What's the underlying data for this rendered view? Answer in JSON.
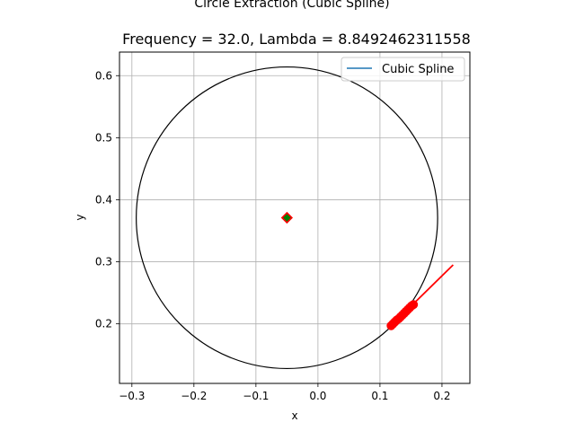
{
  "figure": {
    "suptitle": "Circle Extraction (Cubic Spline)",
    "title": "Frequency = 32.0, Lambda = 8.8492462311558"
  },
  "chart_data": {
    "type": "scatter",
    "title": "Frequency = 32.0, Lambda = 8.8492462311558",
    "xlabel": "x",
    "ylabel": "y",
    "xlim": [
      -0.32,
      0.245
    ],
    "ylim": [
      0.104,
      0.638
    ],
    "xticks": [
      -0.3,
      -0.2,
      -0.1,
      0.0,
      0.1,
      0.2
    ],
    "xtick_labels": [
      "−0.3",
      "−0.2",
      "−0.1",
      "0.0",
      "0.1",
      "0.2"
    ],
    "yticks": [
      0.2,
      0.3,
      0.4,
      0.5,
      0.6
    ],
    "ytick_labels": [
      "0.2",
      "0.3",
      "0.4",
      "0.5",
      "0.6"
    ],
    "grid": true,
    "legend": {
      "placement": "top-right",
      "entries": [
        {
          "label": "Cubic Spline",
          "color": "#1f77b4"
        }
      ]
    },
    "circle": {
      "cx": -0.05,
      "cy": 0.371,
      "r": 0.243,
      "color": "#000000"
    },
    "center_marker": {
      "x": -0.05,
      "y": 0.371,
      "fill": "#008000",
      "edge": "#ff0000"
    },
    "red_line": {
      "x": [
        0.118,
        0.218
      ],
      "y": [
        0.197,
        0.295
      ],
      "color": "#ff0000"
    },
    "red_points": {
      "color": "#ff0000",
      "x": [
        0.118,
        0.121,
        0.124,
        0.127,
        0.13,
        0.133,
        0.136,
        0.139,
        0.142,
        0.145,
        0.148,
        0.151,
        0.154
      ],
      "y": [
        0.197,
        0.2,
        0.203,
        0.206,
        0.208,
        0.211,
        0.214,
        0.217,
        0.22,
        0.223,
        0.226,
        0.229,
        0.231
      ]
    }
  }
}
